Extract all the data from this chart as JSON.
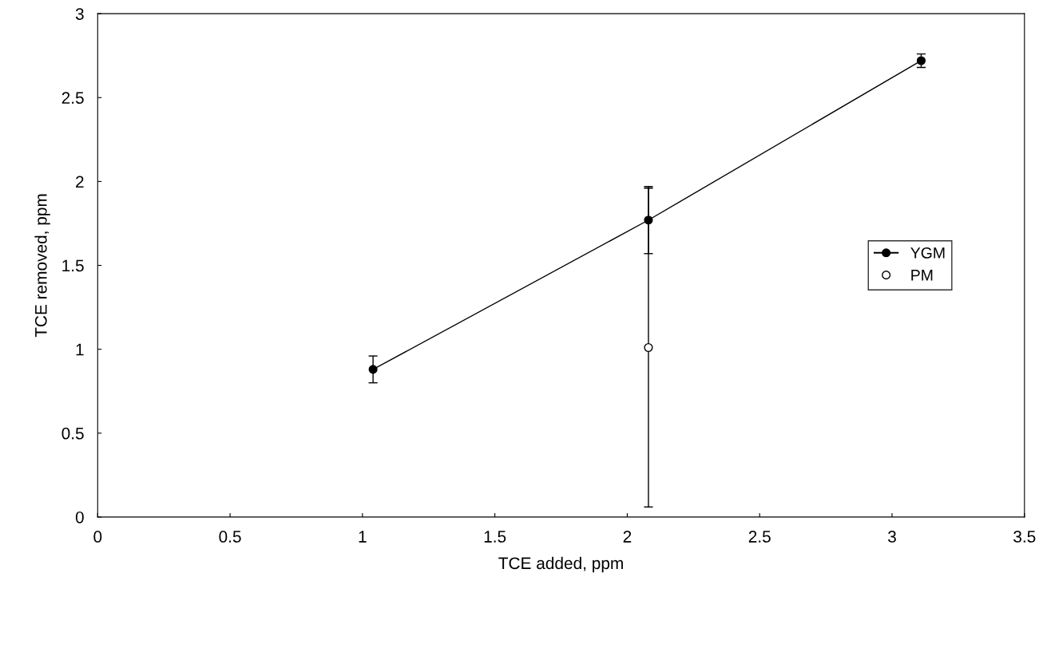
{
  "chart_data": {
    "type": "line",
    "xlabel": "TCE added, ppm",
    "ylabel": "TCE removed, ppm",
    "xlim": [
      0,
      3.5
    ],
    "xticks": [
      0,
      0.5,
      1,
      1.5,
      2,
      2.5,
      3,
      3.5
    ],
    "ylim": [
      0,
      3
    ],
    "yticks": [
      0,
      0.5,
      1,
      1.5,
      2,
      2.5,
      3
    ],
    "legend": "right",
    "grid": false,
    "series": [
      {
        "name": "YGM",
        "marker": "circle",
        "color": "#000000",
        "x": [
          1.04,
          2.08,
          3.11
        ],
        "values": [
          0.88,
          1.77,
          2.72
        ],
        "errors": [
          0.08,
          0.2,
          0.04
        ]
      },
      {
        "name": "PM",
        "type": "scatter",
        "marker": "circle",
        "color": "#000000",
        "x": [
          2.08
        ],
        "values": [
          1.01
        ],
        "errors": [
          0.95
        ]
      }
    ]
  }
}
